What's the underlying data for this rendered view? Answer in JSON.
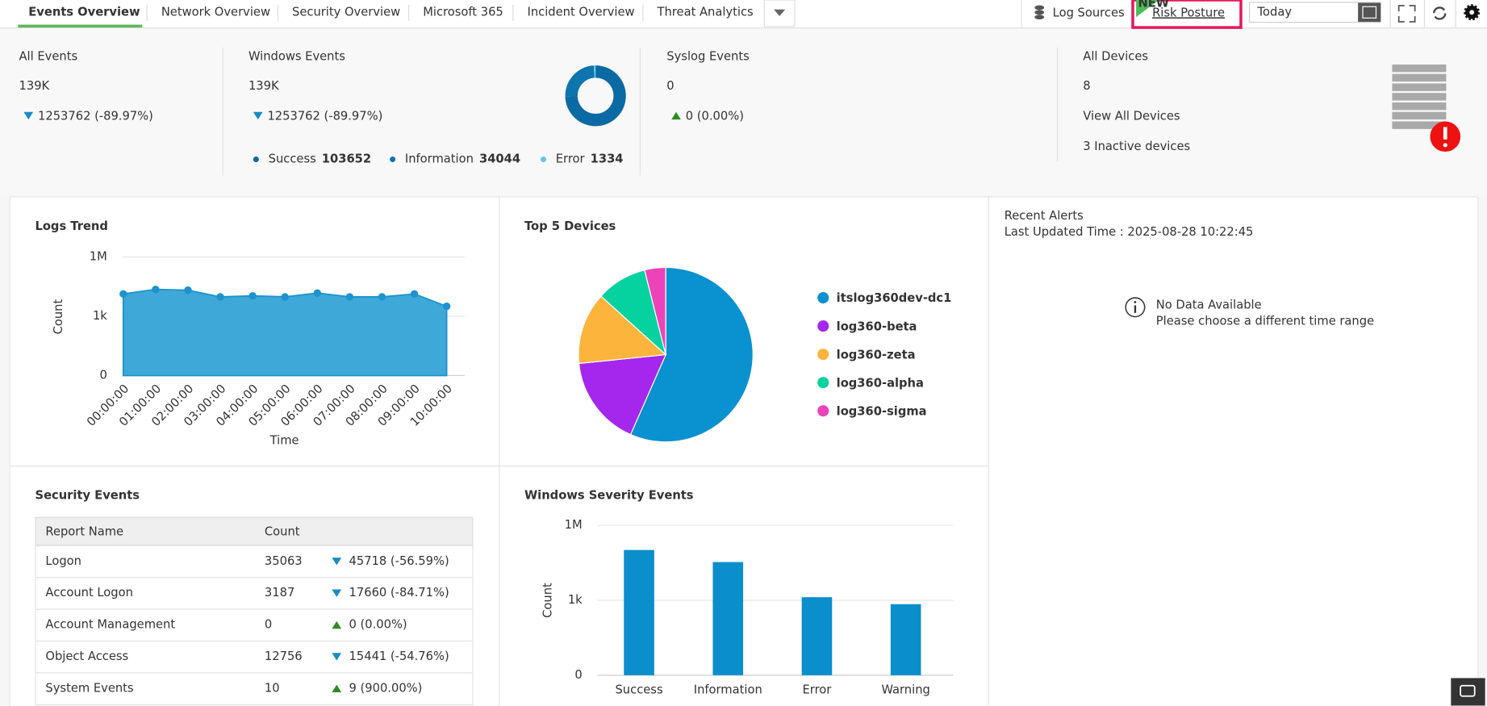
{
  "tabs": {
    "items": [
      "Events Overview",
      "Network Overview",
      "Security Overview",
      "Microsoft 365",
      "Incident Overview",
      "Threat Analytics"
    ],
    "active": 0
  },
  "toolbar": {
    "log_sources": "Log Sources",
    "badge": "NEW",
    "risk_posture": "Risk Posture",
    "date": "Today"
  },
  "summary": {
    "all_events": {
      "title": "All Events",
      "value": "139K",
      "change": "1253762 (-89.97%)",
      "trend": "down"
    },
    "windows_events": {
      "title": "Windows Events",
      "value": "139K",
      "change": "1253762 (-89.97%)",
      "trend": "down"
    },
    "syslog_events": {
      "title": "Syslog Events",
      "value": "0",
      "change": "0 (0.00%)",
      "trend": "up"
    },
    "all_devices": {
      "title": "All Devices",
      "value": "8",
      "link": "View All Devices",
      "inactive": "3 Inactive devices"
    }
  },
  "security_events": {
    "title": "Security Events",
    "header": [
      "Report Name",
      "Count"
    ],
    "rows": [
      {
        "name": "Logon",
        "count": 35063,
        "change": "45718 (-56.59%)",
        "trend": "down"
      },
      {
        "name": "Account Logon",
        "count": 3187,
        "change": "17660 (-84.71%)",
        "trend": "down"
      },
      {
        "name": "Account Management",
        "count": 0,
        "change": "0 (0.00%)",
        "trend": "up"
      },
      {
        "name": "Object Access",
        "count": 12756,
        "change": "15441 (-54.76%)",
        "trend": "down"
      },
      {
        "name": "System Events",
        "count": 10,
        "change": "9 (900.00%)",
        "trend": "up"
      }
    ]
  },
  "recent_alerts": {
    "title": "Recent Alerts",
    "updated": "Last Updated Time : 2025-08-28 10:22:45",
    "empty_title": "No Data Available",
    "empty_hint": "Please choose a different time range"
  },
  "chart_data": [
    {
      "type": "donut",
      "categories": [
        "Success",
        "Information",
        "Error"
      ],
      "values": [
        103652,
        34044,
        1334
      ],
      "colors": [
        "#0b6aa3",
        "#0e74ae",
        "#5ec8ea"
      ]
    },
    {
      "type": "area",
      "title": "Logs Trend",
      "x_label": "Time",
      "y_label": "Count",
      "categories": [
        "00:00:00",
        "01:00:00",
        "02:00:00",
        "03:00:00",
        "04:00:00",
        "05:00:00",
        "06:00:00",
        "07:00:00",
        "08:00:00",
        "09:00:00",
        "10:00:00"
      ],
      "values": [
        13500,
        23000,
        21000,
        9600,
        10800,
        9600,
        15000,
        9600,
        9600,
        13500,
        3200
      ],
      "color": "#3ea8d8",
      "point_color": "#1d92cd",
      "yscale": "symlog",
      "ylim": [
        0,
        1000000
      ],
      "yticks": [
        0,
        {
          "value": 1000,
          "label": "1k"
        },
        {
          "value": 1000000,
          "label": "1M"
        }
      ],
      "grid": true
    },
    {
      "type": "pie",
      "title": "Top 5 Devices",
      "categories": [
        "itslog360dev-dc1",
        "log360-beta",
        "log360-zeta",
        "log360-alpha",
        "log360-sigma"
      ],
      "values": [
        56.6,
        16.8,
        13.3,
        9.4,
        3.9
      ],
      "colors": [
        "#0a91cf",
        "#a527ee",
        "#fdb43c",
        "#06d2a0",
        "#ec43b9"
      ],
      "legend": "right"
    },
    {
      "type": "bar",
      "title": "Windows Severity Events",
      "y_label": "Count",
      "categories": [
        "Success",
        "Information",
        "Error",
        "Warning"
      ],
      "values": [
        103652,
        34044,
        1334,
        700
      ],
      "color": "#0a8fcc",
      "yscale": "symlog",
      "ylim": [
        0,
        1000000
      ],
      "yticks": [
        0,
        {
          "value": 1000,
          "label": "1k"
        },
        {
          "value": 1000000,
          "label": "1M"
        }
      ],
      "grid": true
    }
  ]
}
